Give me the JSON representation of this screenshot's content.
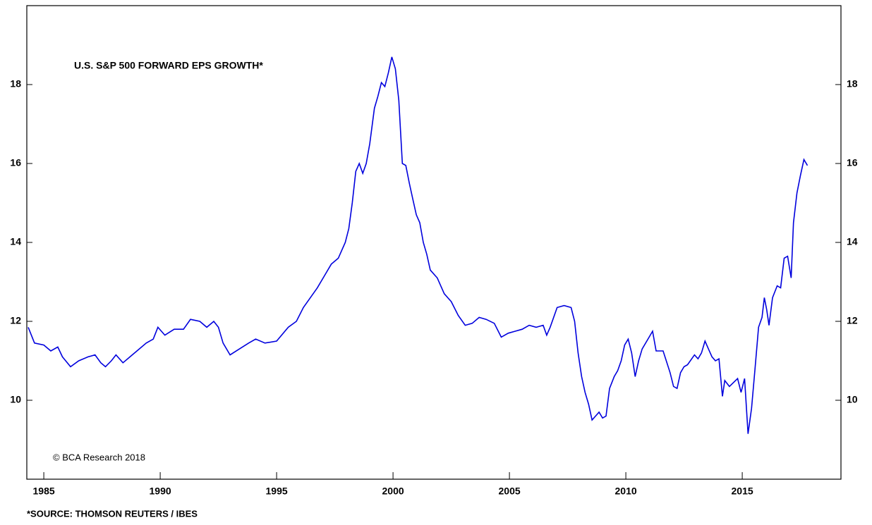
{
  "chart_data": {
    "type": "line",
    "title": "U.S. S&P 500 FORWARD EPS GROWTH*",
    "annotations": [
      "© BCA Research 2018"
    ],
    "source": "*SOURCE: THOMSON REUTERS / IBES",
    "x": [
      1984.33,
      1984.6,
      1985.0,
      1985.3,
      1985.6,
      1985.8,
      1986.15,
      1986.5,
      1986.9,
      1987.2,
      1987.45,
      1987.65,
      1987.9,
      1988.1,
      1988.4,
      1988.7,
      1989.0,
      1989.4,
      1989.7,
      1989.9,
      1990.2,
      1990.6,
      1991.0,
      1991.3,
      1991.7,
      1992.0,
      1992.3,
      1992.5,
      1992.7,
      1993.0,
      1993.4,
      1993.8,
      1994.1,
      1994.5,
      1995.0,
      1995.5,
      1995.85,
      1996.15,
      1996.45,
      1996.75,
      1997.05,
      1997.35,
      1997.65,
      1997.95,
      1998.1,
      1998.25,
      1998.4,
      1998.55,
      1998.7,
      1998.85,
      1999.0,
      1999.2,
      1999.35,
      1999.5,
      1999.65,
      1999.8,
      1999.95,
      2000.1,
      2000.25,
      2000.4,
      2000.55,
      2000.7,
      2000.85,
      2001.0,
      2001.15,
      2001.3,
      2001.45,
      2001.6,
      2001.9,
      2002.2,
      2002.5,
      2002.8,
      2003.1,
      2003.4,
      2003.7,
      2004.0,
      2004.35,
      2004.65,
      2004.95,
      2005.25,
      2005.55,
      2005.85,
      2006.15,
      2006.45,
      2006.6,
      2006.75,
      2007.05,
      2007.35,
      2007.65,
      2007.8,
      2007.95,
      2008.1,
      2008.25,
      2008.4,
      2008.55,
      2008.7,
      2008.85,
      2009.0,
      2009.15,
      2009.3,
      2009.5,
      2009.65,
      2009.8,
      2009.95,
      2010.1,
      2010.25,
      2010.4,
      2010.55,
      2010.7,
      2011.0,
      2011.15,
      2011.3,
      2011.6,
      2011.9,
      2012.05,
      2012.2,
      2012.35,
      2012.5,
      2012.65,
      2012.95,
      2013.1,
      2013.25,
      2013.4,
      2013.55,
      2013.7,
      2013.85,
      2014.0,
      2014.15,
      2014.25,
      2014.45,
      2014.8,
      2014.95,
      2015.1,
      2015.25,
      2015.4,
      2015.55,
      2015.7,
      2015.85,
      2015.95,
      2016.05,
      2016.15,
      2016.3,
      2016.5,
      2016.65,
      2016.8,
      2016.95,
      2017.1,
      2017.2,
      2017.35,
      2017.5,
      2017.65,
      2017.8
    ],
    "series": [
      {
        "name": "U.S. S&P 500 FORWARD EPS GROWTH*",
        "color": "#0000dd",
        "values": [
          11.85,
          11.45,
          11.4,
          11.25,
          11.35,
          11.1,
          10.85,
          11.0,
          11.1,
          11.15,
          10.95,
          10.85,
          11.0,
          11.15,
          10.95,
          11.1,
          11.25,
          11.45,
          11.55,
          11.85,
          11.65,
          11.8,
          11.8,
          12.05,
          12.0,
          11.85,
          12.0,
          11.85,
          11.45,
          11.15,
          11.3,
          11.45,
          11.55,
          11.45,
          11.5,
          11.85,
          12.0,
          12.35,
          12.6,
          12.85,
          13.15,
          13.45,
          13.6,
          14.0,
          14.35,
          15.0,
          15.8,
          16.0,
          15.75,
          16.0,
          16.5,
          17.4,
          17.7,
          18.05,
          17.95,
          18.3,
          18.7,
          18.4,
          17.6,
          16.0,
          15.95,
          15.5,
          15.1,
          14.7,
          14.5,
          14.0,
          13.7,
          13.3,
          13.1,
          12.7,
          12.5,
          12.15,
          11.9,
          11.95,
          12.1,
          12.05,
          11.95,
          11.6,
          11.7,
          11.75,
          11.8,
          11.9,
          11.85,
          11.9,
          11.65,
          11.85,
          12.35,
          12.4,
          12.35,
          12.0,
          11.2,
          10.6,
          10.2,
          9.9,
          9.5,
          9.6,
          9.7,
          9.55,
          9.6,
          10.3,
          10.6,
          10.75,
          11.0,
          11.4,
          11.55,
          11.2,
          10.6,
          11.0,
          11.3,
          11.6,
          11.75,
          11.25,
          11.25,
          10.7,
          10.35,
          10.3,
          10.7,
          10.85,
          10.9,
          11.15,
          11.05,
          11.2,
          11.5,
          11.3,
          11.1,
          11.0,
          11.05,
          10.1,
          10.5,
          10.35,
          10.55,
          10.2,
          10.55,
          9.15,
          9.8,
          10.8,
          11.85,
          12.1,
          12.6,
          12.3,
          11.9,
          12.6,
          12.9,
          12.85,
          13.6,
          13.65,
          13.1,
          14.5,
          15.25,
          15.7,
          16.1,
          15.95
        ]
      }
    ],
    "xlim": [
      1984.27,
      2019.24
    ],
    "xticks": [
      1985,
      1990,
      1995,
      2000,
      2005,
      2010,
      2015
    ],
    "ylim": [
      8,
      20
    ],
    "yticks": [
      10,
      12,
      14,
      16,
      18
    ]
  }
}
